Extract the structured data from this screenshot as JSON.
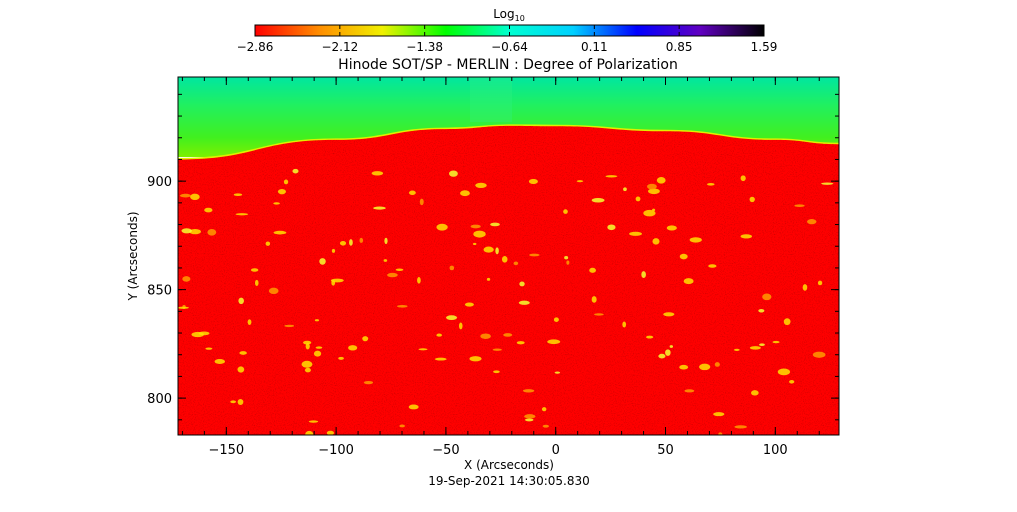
{
  "chart_data": {
    "type": "heatmap",
    "title": "Hinode SOT/SP - MERLIN : Degree of Polarization",
    "subtitle": "19-Sep-2021 14:30:05.830",
    "xlabel": "X (Arcseconds)",
    "ylabel": "Y (Arcseconds)",
    "xlim": [
      -172,
      129
    ],
    "ylim": [
      783,
      948
    ],
    "x_ticks": [
      -150,
      -100,
      -50,
      0,
      50,
      100
    ],
    "y_ticks": [
      800,
      850,
      900
    ],
    "x_tick_labels": [
      "−150",
      "−100",
      "−50",
      "0",
      "50",
      "100"
    ],
    "y_tick_labels": [
      "800",
      "850",
      "900"
    ],
    "limb": {
      "description_points_x": [
        -172,
        -100,
        -50,
        -20,
        0,
        50,
        100,
        129
      ],
      "description_points_y": [
        910,
        919,
        924,
        925.5,
        925.3,
        923,
        919,
        917
      ]
    },
    "colorbar": {
      "label_base": "Log",
      "label_subscript": "10",
      "tick_labels": [
        "−2.86",
        "−2.12",
        "−1.38",
        "−0.64",
        "0.11",
        "0.85",
        "1.59"
      ],
      "range": [
        -2.86,
        1.59
      ],
      "colormap": [
        "#ff0000",
        "#ff8c00",
        "#f0f000",
        "#00ff00",
        "#00ffd0",
        "#00d0ff",
        "#0000ff",
        "#6000c0",
        "#000000"
      ]
    },
    "value_ranges": {
      "disk_background": "#ff0000",
      "off_limb_top": "#00e890",
      "off_limb_near_limb": "#80f000",
      "limb_edge": "#d8f000",
      "active_patch": "#ffe000"
    }
  }
}
